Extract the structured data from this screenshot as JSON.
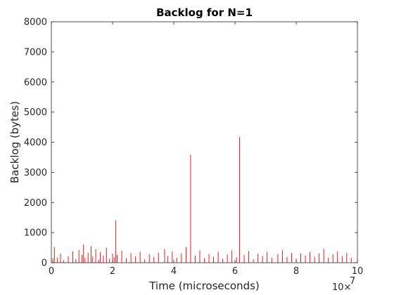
{
  "chart_data": {
    "type": "line",
    "title": "Backlog for N=1",
    "xlabel": "Time (microseconds)",
    "ylabel": "Backlog (bytes)",
    "x_exponent_base": "10",
    "x_exponent_power": "7",
    "xlim": [
      0,
      10
    ],
    "ylim": [
      0,
      8000
    ],
    "x_ticks": [
      0,
      2,
      4,
      6,
      8,
      10
    ],
    "y_ticks": [
      0,
      1000,
      2000,
      3000,
      4000,
      5000,
      6000,
      7000,
      8000
    ],
    "x_tick_labels": [
      "0",
      "2",
      "4",
      "6",
      "8",
      "10"
    ],
    "y_tick_labels": [
      "0",
      "1000",
      "2000",
      "3000",
      "4000",
      "5000",
      "6000",
      "7000",
      "8000"
    ],
    "grid": false,
    "series": [
      {
        "color": "#ff0000",
        "style": "vertical spikes from zero",
        "points": [
          {
            "x": 0.05,
            "y": 150
          },
          {
            "x": 0.1,
            "y": 520
          },
          {
            "x": 0.2,
            "y": 180
          },
          {
            "x": 0.3,
            "y": 300
          },
          {
            "x": 0.4,
            "y": 80
          },
          {
            "x": 0.55,
            "y": 210
          },
          {
            "x": 0.7,
            "y": 380
          },
          {
            "x": 0.8,
            "y": 120
          },
          {
            "x": 0.9,
            "y": 420
          },
          {
            "x": 1.0,
            "y": 260
          },
          {
            "x": 1.05,
            "y": 600
          },
          {
            "x": 1.1,
            "y": 160
          },
          {
            "x": 1.2,
            "y": 330
          },
          {
            "x": 1.3,
            "y": 550
          },
          {
            "x": 1.35,
            "y": 200
          },
          {
            "x": 1.45,
            "y": 450
          },
          {
            "x": 1.55,
            "y": 90
          },
          {
            "x": 1.6,
            "y": 350
          },
          {
            "x": 1.7,
            "y": 240
          },
          {
            "x": 1.8,
            "y": 500
          },
          {
            "x": 1.9,
            "y": 130
          },
          {
            "x": 2.0,
            "y": 300
          },
          {
            "x": 2.05,
            "y": 180
          },
          {
            "x": 2.1,
            "y": 1400
          },
          {
            "x": 2.15,
            "y": 260
          },
          {
            "x": 2.3,
            "y": 400
          },
          {
            "x": 2.45,
            "y": 150
          },
          {
            "x": 2.6,
            "y": 320
          },
          {
            "x": 2.75,
            "y": 210
          },
          {
            "x": 2.9,
            "y": 360
          },
          {
            "x": 3.05,
            "y": 110
          },
          {
            "x": 3.2,
            "y": 280
          },
          {
            "x": 3.35,
            "y": 190
          },
          {
            "x": 3.5,
            "y": 330
          },
          {
            "x": 3.7,
            "y": 450
          },
          {
            "x": 3.8,
            "y": 220
          },
          {
            "x": 3.95,
            "y": 370
          },
          {
            "x": 4.1,
            "y": 160
          },
          {
            "x": 4.25,
            "y": 310
          },
          {
            "x": 4.4,
            "y": 520
          },
          {
            "x": 4.55,
            "y": 3580
          },
          {
            "x": 4.7,
            "y": 240
          },
          {
            "x": 4.85,
            "y": 400
          },
          {
            "x": 5.0,
            "y": 150
          },
          {
            "x": 5.15,
            "y": 290
          },
          {
            "x": 5.3,
            "y": 200
          },
          {
            "x": 5.45,
            "y": 360
          },
          {
            "x": 5.6,
            "y": 130
          },
          {
            "x": 5.75,
            "y": 270
          },
          {
            "x": 5.9,
            "y": 410
          },
          {
            "x": 6.05,
            "y": 180
          },
          {
            "x": 6.15,
            "y": 4170
          },
          {
            "x": 6.3,
            "y": 250
          },
          {
            "x": 6.45,
            "y": 380
          },
          {
            "x": 6.6,
            "y": 120
          },
          {
            "x": 6.75,
            "y": 300
          },
          {
            "x": 6.9,
            "y": 220
          },
          {
            "x": 7.05,
            "y": 350
          },
          {
            "x": 7.2,
            "y": 170
          },
          {
            "x": 7.4,
            "y": 280
          },
          {
            "x": 7.55,
            "y": 410
          },
          {
            "x": 7.7,
            "y": 190
          },
          {
            "x": 7.85,
            "y": 330
          },
          {
            "x": 8.0,
            "y": 140
          },
          {
            "x": 8.15,
            "y": 300
          },
          {
            "x": 8.3,
            "y": 240
          },
          {
            "x": 8.45,
            "y": 360
          },
          {
            "x": 8.6,
            "y": 200
          },
          {
            "x": 8.75,
            "y": 310
          },
          {
            "x": 8.9,
            "y": 460
          },
          {
            "x": 9.05,
            "y": 170
          },
          {
            "x": 9.2,
            "y": 280
          },
          {
            "x": 9.35,
            "y": 380
          },
          {
            "x": 9.5,
            "y": 220
          },
          {
            "x": 9.65,
            "y": 330
          },
          {
            "x": 9.8,
            "y": 160
          }
        ]
      }
    ]
  }
}
